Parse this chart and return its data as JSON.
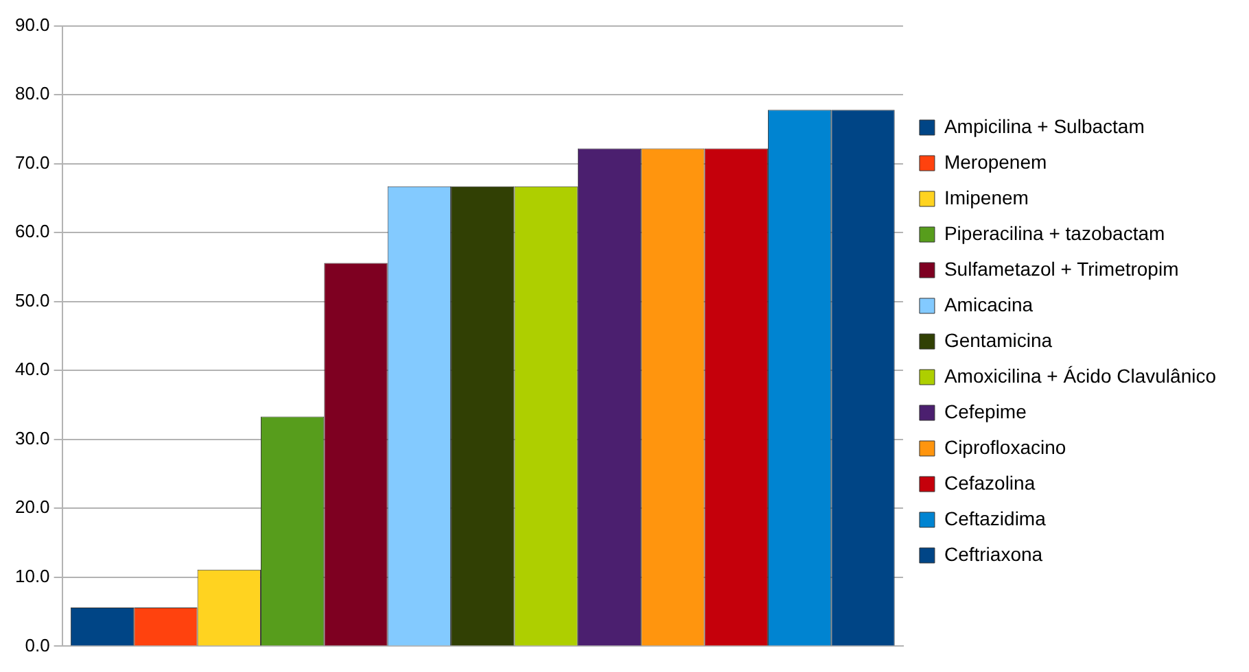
{
  "chart_data": {
    "type": "bar",
    "categories": [
      null
    ],
    "series": [
      {
        "name": "Ampicilina + Sulbactam",
        "color": "#004586",
        "values": [
          5.6
        ]
      },
      {
        "name": "Meropenem",
        "color": "#ff420e",
        "values": [
          5.6
        ]
      },
      {
        "name": "Imipenem",
        "color": "#ffd320",
        "values": [
          11.1
        ]
      },
      {
        "name": "Piperacilina + tazobactam",
        "color": "#579d1c",
        "values": [
          33.3
        ]
      },
      {
        "name": "Sulfametazol + Trimetropim",
        "color": "#7e0021",
        "values": [
          55.6
        ]
      },
      {
        "name": "Amicacina",
        "color": "#83caff",
        "values": [
          66.7
        ]
      },
      {
        "name": "Gentamicina",
        "color": "#314004",
        "values": [
          66.7
        ]
      },
      {
        "name": "Amoxicilina + Ácido Clavulânico",
        "color": "#aecf00",
        "values": [
          66.7
        ]
      },
      {
        "name": "Cefepime",
        "color": "#4b1f6f",
        "values": [
          72.2
        ]
      },
      {
        "name": "Ciprofloxacino",
        "color": "#ff950e",
        "values": [
          72.2
        ]
      },
      {
        "name": "Cefazolina",
        "color": "#c5000b",
        "values": [
          72.2
        ]
      },
      {
        "name": "Ceftazidima",
        "color": "#0084d1",
        "values": [
          77.8
        ]
      },
      {
        "name": "Ceftriaxona",
        "color": "#004586",
        "values": [
          77.8
        ]
      }
    ],
    "ylim": [
      0,
      90
    ],
    "yticks": [
      {
        "value": 0,
        "label": "0.0"
      },
      {
        "value": 10,
        "label": "10.0"
      },
      {
        "value": 20,
        "label": "20.0"
      },
      {
        "value": 30,
        "label": "30.0"
      },
      {
        "value": 40,
        "label": "40.0"
      },
      {
        "value": 50,
        "label": "50.0"
      },
      {
        "value": 60,
        "label": "60.0"
      },
      {
        "value": 70,
        "label": "70.0"
      },
      {
        "value": 80,
        "label": "80.0"
      },
      {
        "value": 90,
        "label": "90.0"
      }
    ],
    "grid": "y",
    "legend": "right"
  }
}
